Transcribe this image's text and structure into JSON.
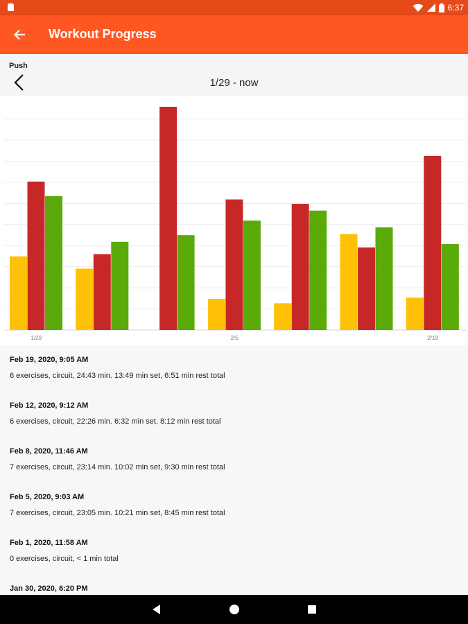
{
  "status_bar": {
    "time": "6:37",
    "icons": [
      "notification-icon",
      "wifi-icon",
      "signal-icon",
      "battery-icon"
    ]
  },
  "app_bar": {
    "title": "Workout Progress",
    "back_icon": "arrow-back-icon",
    "background": "#ff5722",
    "status_background": "#e64a19"
  },
  "subheader": {
    "routine": "Push",
    "range": "1/29 - now",
    "prev_icon": "chevron-left-icon"
  },
  "chart_data": {
    "type": "bar",
    "x_tick_labels": [
      "1/29",
      "2/5",
      "2/19"
    ],
    "grid": true,
    "ylim": [
      0,
      1
    ],
    "series": [
      {
        "color": "#ffc107",
        "values": [
          0.33,
          0.275,
          null,
          0.14,
          0.12,
          0.43,
          0.145
        ]
      },
      {
        "color": "#c62828",
        "values": [
          0.665,
          0.34,
          1.0,
          0.585,
          0.565,
          0.37,
          0.78
        ]
      },
      {
        "color": "#5aaa0a",
        "values": [
          0.6,
          0.395,
          0.425,
          0.49,
          0.535,
          0.46,
          0.385
        ]
      }
    ]
  },
  "workouts": [
    {
      "date": "Feb 19, 2020, 9:05 AM",
      "detail": "6 exercises, circuit, 24:43 min. 13:49 min set, 6:51 min rest total"
    },
    {
      "date": "Feb 12, 2020, 9:12 AM",
      "detail": "6 exercises, circuit, 22:26 min. 6:32 min set, 8:12 min rest total"
    },
    {
      "date": "Feb 8, 2020, 11:46 AM",
      "detail": "7 exercises, circuit, 23:14 min. 10:02 min set, 9:30 min rest total"
    },
    {
      "date": "Feb 5, 2020, 9:03 AM",
      "detail": "7 exercises, circuit, 23:05 min. 10:21 min set, 8:45 min rest total"
    },
    {
      "date": "Feb 1, 2020, 11:58 AM",
      "detail": "0 exercises, circuit, < 1 min total"
    },
    {
      "date": "Jan 30, 2020, 6:20 PM",
      "detail": ""
    }
  ],
  "nav_bar": {
    "icons": [
      "back-triangle-icon",
      "home-circle-icon",
      "recents-square-icon"
    ]
  }
}
